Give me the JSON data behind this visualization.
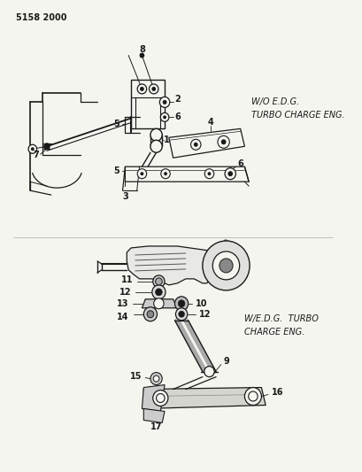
{
  "title": "5158 2000",
  "bg_color": "#f5f5f0",
  "line_color": "#1a1a1a",
  "text_color": "#1a1a1a",
  "top_label1": "W/O E.D.G.",
  "top_label2": "TURBO CHARGE ENG.",
  "bottom_label1": "W/E.D.G.  TURBO",
  "bottom_label2": "CHARGE ENG.",
  "figsize": [
    4.1,
    5.33
  ],
  "dpi": 100
}
